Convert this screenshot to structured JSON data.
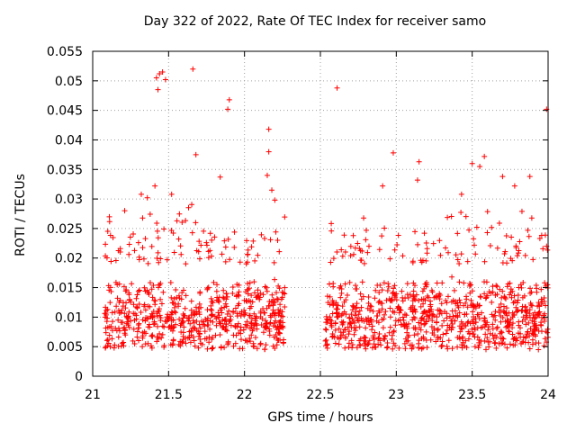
{
  "chart_data": {
    "type": "scatter",
    "title": "Day 322 of 2022, Rate Of TEC Index for receiver samo",
    "xlabel": "GPS time / hours",
    "ylabel": "ROTI / TECUs",
    "xlim": [
      21,
      24
    ],
    "ylim": [
      0,
      0.055
    ],
    "x_ticks": [
      21,
      21.5,
      22,
      22.5,
      23,
      23.5,
      24
    ],
    "y_ticks": [
      0,
      0.005,
      0.01,
      0.015,
      0.02,
      0.025,
      0.03,
      0.035,
      0.04,
      0.045,
      0.05,
      0.055
    ],
    "grid": true,
    "marker": "+",
    "series": [
      {
        "name": "ROTI",
        "color": "#ff0000",
        "points": [
          [
            21.42,
            0.0505
          ],
          [
            21.44,
            0.0512
          ],
          [
            21.46,
            0.0515
          ],
          [
            21.43,
            0.0485
          ],
          [
            21.48,
            0.0502
          ],
          [
            21.66,
            0.052
          ],
          [
            21.9,
            0.0468
          ],
          [
            21.89,
            0.0452
          ],
          [
            22.16,
            0.0418
          ],
          [
            22.16,
            0.038
          ],
          [
            21.68,
            0.0375
          ],
          [
            21.84,
            0.0337
          ],
          [
            22.15,
            0.034
          ],
          [
            22.18,
            0.0315
          ],
          [
            22.2,
            0.0298
          ],
          [
            21.41,
            0.0322
          ],
          [
            21.32,
            0.0308
          ],
          [
            21.52,
            0.0308
          ],
          [
            21.36,
            0.0302
          ],
          [
            22.61,
            0.0488
          ],
          [
            23.99,
            0.0452
          ],
          [
            22.98,
            0.0378
          ],
          [
            23.15,
            0.0363
          ],
          [
            23.58,
            0.0372
          ],
          [
            23.55,
            0.0355
          ],
          [
            23.5,
            0.036
          ],
          [
            23.14,
            0.0332
          ],
          [
            23.7,
            0.0338
          ],
          [
            23.88,
            0.0338
          ],
          [
            23.43,
            0.0308
          ],
          [
            23.78,
            0.0322
          ],
          [
            22.91,
            0.0322
          ],
          [
            23.99,
            0.022
          ]
        ],
        "band": {
          "segments": [
            [
              21.08,
              22.27
            ],
            [
              22.53,
              24.0
            ]
          ],
          "typical_range": [
            0.0045,
            0.019
          ],
          "scattered_up_to": 0.03,
          "approx_point_count": 1600
        }
      }
    ]
  }
}
